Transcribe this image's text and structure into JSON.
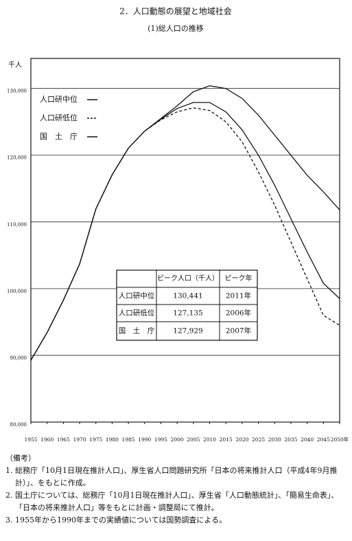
{
  "header": {
    "title": "2．人口動態の展望と地域社会",
    "subtitle": "(1)総人口の推移"
  },
  "chart_data": {
    "type": "line",
    "y_unit": "千人",
    "x": [
      1955,
      1960,
      1965,
      1970,
      1975,
      1980,
      1985,
      1990,
      1995,
      2000,
      2005,
      2010,
      2015,
      2020,
      2025,
      2030,
      2035,
      2040,
      2045,
      2050
    ],
    "xlim": [
      1955,
      2050
    ],
    "xticks": [
      1955,
      1960,
      1965,
      1970,
      1975,
      1980,
      1985,
      1990,
      1995,
      2000,
      2005,
      2010,
      2015,
      2020,
      2025,
      2030,
      2035,
      2040,
      2045,
      {
        "value": 2050,
        "label": "2050年"
      }
    ],
    "ylim": [
      80000,
      134500
    ],
    "yticks": [
      {
        "value": 80000,
        "label": "80,000"
      },
      {
        "value": 90000,
        "label": "90,000"
      },
      {
        "value": 100000,
        "label": "100,000"
      },
      {
        "value": 110000,
        "label": "110,000"
      },
      {
        "value": 120000,
        "label": "120,000"
      },
      {
        "value": 130000,
        "label": "130,000"
      }
    ],
    "grid": true,
    "series": [
      {
        "name": "人口研中位",
        "color": "#111111",
        "style": "solid",
        "values": [
          89276,
          93419,
          98275,
          103720,
          111940,
          117060,
          121049,
          123611,
          125500,
          127400,
          129500,
          130400,
          130000,
          128500,
          126000,
          123000,
          120000,
          117000,
          114500,
          111800
        ]
      },
      {
        "name": "人口研低位",
        "color": "#111111",
        "style": "dashed",
        "values": [
          89276,
          93419,
          98275,
          103720,
          111940,
          117060,
          121049,
          123611,
          125300,
          126500,
          127100,
          126700,
          125000,
          122000,
          117500,
          112500,
          107000,
          101500,
          96000,
          94500
        ]
      },
      {
        "name": "国　土　庁",
        "color": "#111111",
        "style": "solid",
        "values": [
          89276,
          93419,
          98275,
          103720,
          111940,
          117060,
          121049,
          123611,
          125400,
          127000,
          127900,
          127900,
          126500,
          123800,
          120000,
          115500,
          110500,
          105500,
          100800,
          98500
        ]
      }
    ]
  },
  "table": {
    "header": [
      "ピーク人口（千人）",
      "ピーク年"
    ],
    "rows": [
      [
        "人口研中位",
        "130,441",
        "2011年"
      ],
      [
        "人口研低位",
        "127,135",
        "2006年"
      ],
      [
        "国　土　庁",
        "127,929",
        "2007年"
      ]
    ]
  },
  "notes": {
    "heading": "（備考）",
    "items": [
      "1. 総務庁「10月1日現在推計人口」、厚生省人口問題研究所「日本の将来推計人口（平成4年9月推計）」、をもとに作成。",
      "2. 国土庁については、総務庁「10月1日現在推計人口」、厚生省「人口動態統計」、「簡易生命表」、「日本の将来推計人口」等をもとに計画・調整局にて推計。",
      "3. 1955年から1990年までの実績値については国勢調査による。"
    ]
  }
}
